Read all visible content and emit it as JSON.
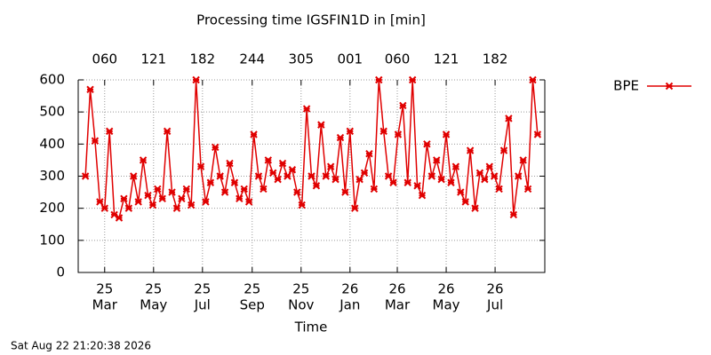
{
  "chart_data": {
    "type": "line",
    "title": "Processing time IGSFIN1D in [min]",
    "xlabel": "Time",
    "footer": "Sat Aug 22 21:20:38 2026",
    "x": [
      "2025-02-05",
      "2025-02-11",
      "2025-02-17",
      "2025-02-23",
      "2025-03-01",
      "2025-03-07",
      "2025-03-13",
      "2025-03-19",
      "2025-03-25",
      "2025-03-31",
      "2025-04-06",
      "2025-04-12",
      "2025-04-18",
      "2025-04-24",
      "2025-04-30",
      "2025-05-06",
      "2025-05-12",
      "2025-05-18",
      "2025-05-24",
      "2025-05-30",
      "2025-06-05",
      "2025-06-11",
      "2025-06-17",
      "2025-06-23",
      "2025-06-29",
      "2025-07-05",
      "2025-07-11",
      "2025-07-17",
      "2025-07-23",
      "2025-07-29",
      "2025-08-04",
      "2025-08-10",
      "2025-08-16",
      "2025-08-22",
      "2025-08-28",
      "2025-09-03",
      "2025-09-09",
      "2025-09-15",
      "2025-09-21",
      "2025-09-27",
      "2025-10-03",
      "2025-10-09",
      "2025-10-15",
      "2025-10-21",
      "2025-10-27",
      "2025-11-02",
      "2025-11-08",
      "2025-11-14",
      "2025-11-20",
      "2025-11-26",
      "2025-12-02",
      "2025-12-08",
      "2025-12-14",
      "2025-12-20",
      "2025-12-26",
      "2026-01-01",
      "2026-01-07",
      "2026-01-13",
      "2026-01-19",
      "2026-01-25",
      "2026-01-31",
      "2026-02-06",
      "2026-02-12",
      "2026-02-18",
      "2026-02-24",
      "2026-03-02",
      "2026-03-08",
      "2026-03-14",
      "2026-03-20",
      "2026-03-26",
      "2026-04-01",
      "2026-04-07",
      "2026-04-13",
      "2026-04-19",
      "2026-04-25",
      "2026-05-01",
      "2026-05-07",
      "2026-05-13",
      "2026-05-19",
      "2026-05-25",
      "2026-05-31",
      "2026-06-06",
      "2026-06-12",
      "2026-06-18",
      "2026-06-24",
      "2026-06-30",
      "2026-07-06",
      "2026-07-12",
      "2026-07-18",
      "2026-07-24",
      "2026-07-30",
      "2026-08-05",
      "2026-08-11",
      "2026-08-17",
      "2026-08-23"
    ],
    "series": [
      {
        "name": "BPE",
        "color": "#e00000",
        "values": [
          300,
          570,
          410,
          220,
          200,
          440,
          180,
          170,
          230,
          200,
          300,
          220,
          350,
          240,
          210,
          260,
          230,
          440,
          250,
          200,
          230,
          260,
          210,
          600,
          330,
          220,
          280,
          390,
          300,
          250,
          340,
          280,
          230,
          260,
          220,
          430,
          300,
          260,
          350,
          310,
          290,
          340,
          300,
          320,
          250,
          210,
          510,
          300,
          270,
          460,
          300,
          330,
          290,
          420,
          250,
          440,
          200,
          290,
          310,
          370,
          260,
          600,
          440,
          300,
          280,
          430,
          520,
          280,
          600,
          270,
          240,
          400,
          300,
          350,
          290,
          430,
          280,
          330,
          250,
          220,
          380,
          200,
          310,
          290,
          330,
          300,
          260,
          380,
          480,
          180,
          300,
          350,
          260,
          600,
          430
        ]
      }
    ],
    "xlim": [
      "2025-01-27",
      "2026-09-01"
    ],
    "xticks": [
      {
        "value": "2025-03-01",
        "label": [
          "25",
          "Mar"
        ]
      },
      {
        "value": "2025-05-01",
        "label": [
          "25",
          "May"
        ]
      },
      {
        "value": "2025-07-01",
        "label": [
          "25",
          "Jul"
        ]
      },
      {
        "value": "2025-09-01",
        "label": [
          "25",
          "Sep"
        ]
      },
      {
        "value": "2025-11-01",
        "label": [
          "25",
          "Nov"
        ]
      },
      {
        "value": "2026-01-01",
        "label": [
          "26",
          "Jan"
        ]
      },
      {
        "value": "2026-03-01",
        "label": [
          "26",
          "Mar"
        ]
      },
      {
        "value": "2026-05-01",
        "label": [
          "26",
          "May"
        ]
      },
      {
        "value": "2026-07-01",
        "label": [
          "26",
          "Jul"
        ]
      }
    ],
    "x2ticks": [
      {
        "value": "2025-03-01",
        "label": "060"
      },
      {
        "value": "2025-05-01",
        "label": "121"
      },
      {
        "value": "2025-07-01",
        "label": "182"
      },
      {
        "value": "2025-09-01",
        "label": "244"
      },
      {
        "value": "2025-11-01",
        "label": "305"
      },
      {
        "value": "2026-01-01",
        "label": "001"
      },
      {
        "value": "2026-03-01",
        "label": "060"
      },
      {
        "value": "2026-05-01",
        "label": "121"
      },
      {
        "value": "2026-07-01",
        "label": "182"
      }
    ],
    "ylim": [
      0,
      600
    ],
    "yticks": [
      0,
      100,
      200,
      300,
      400,
      500,
      600
    ],
    "grid": true,
    "legend": "top-right"
  }
}
